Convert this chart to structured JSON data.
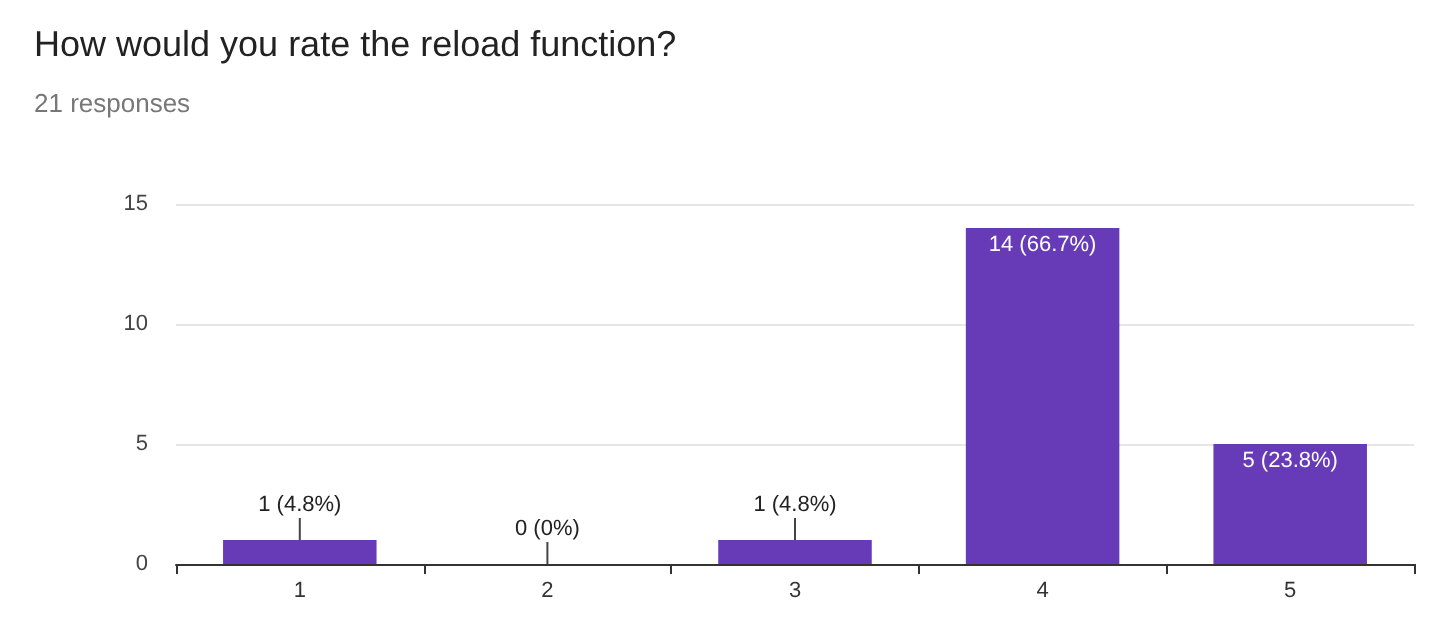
{
  "chart_data": {
    "type": "bar",
    "title": "How would you rate the reload function?",
    "subtitle": "21 responses",
    "categories": [
      "1",
      "2",
      "3",
      "4",
      "5"
    ],
    "values": [
      1,
      0,
      1,
      14,
      5
    ],
    "value_labels": [
      "1 (4.8%)",
      "0 (0%)",
      "1 (4.8%)",
      "14 (66.7%)",
      "5 (23.8%)"
    ],
    "color": "#673ab7",
    "ylim": [
      0,
      15
    ],
    "yticks": [
      0,
      5,
      10,
      15
    ],
    "grid": "y"
  }
}
